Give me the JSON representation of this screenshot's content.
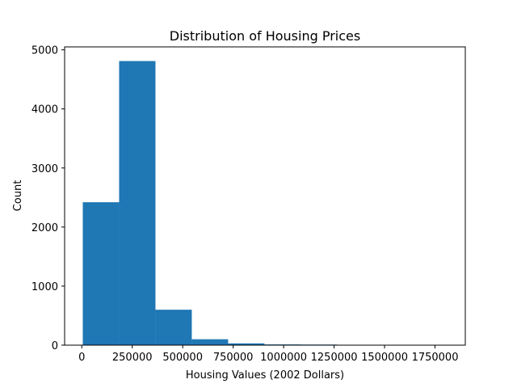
{
  "chart_data": {
    "type": "bar",
    "title": "Distribution of Housing Prices",
    "xlabel": "Housing Values (2002 Dollars)",
    "ylabel": "Count",
    "xlim": [
      -85000,
      1900000
    ],
    "ylim": [
      0,
      5050
    ],
    "bins": [
      {
        "x0": 5000,
        "x1": 185000,
        "value": 2420
      },
      {
        "x0": 185000,
        "x1": 365000,
        "value": 4810
      },
      {
        "x0": 365000,
        "x1": 545000,
        "value": 600
      },
      {
        "x0": 545000,
        "x1": 725000,
        "value": 100
      },
      {
        "x0": 725000,
        "x1": 905000,
        "value": 30
      },
      {
        "x0": 905000,
        "x1": 1085000,
        "value": 12
      },
      {
        "x0": 1085000,
        "x1": 1265000,
        "value": 10
      },
      {
        "x0": 1265000,
        "x1": 1445000,
        "value": 4
      },
      {
        "x0": 1445000,
        "x1": 1625000,
        "value": 1
      },
      {
        "x0": 1625000,
        "x1": 1805000,
        "value": 1
      }
    ],
    "xticks": [
      0,
      250000,
      500000,
      750000,
      1000000,
      1250000,
      1500000,
      1750000
    ],
    "xtick_labels": [
      "0",
      "250000",
      "500000",
      "750000",
      "1000000",
      "1250000",
      "1500000",
      "1750000"
    ],
    "yticks": [
      0,
      1000,
      2000,
      3000,
      4000,
      5000
    ],
    "ytick_labels": [
      "0",
      "1000",
      "2000",
      "3000",
      "4000",
      "5000"
    ],
    "bar_color": "#1f77b4",
    "grid": false,
    "legend": "none"
  }
}
